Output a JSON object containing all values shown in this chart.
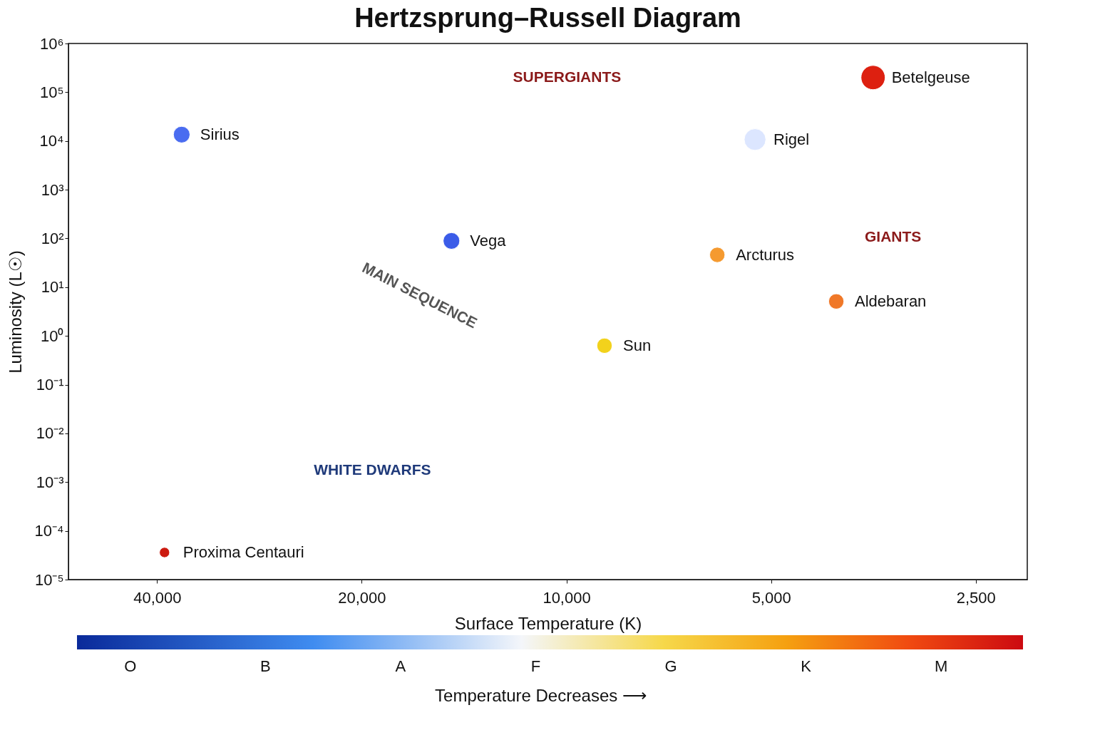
{
  "chart_data": {
    "type": "bubble",
    "title": "Hertzsprung–Russell Diagram",
    "xlabel": "Surface Temperature (K)",
    "ylabel": "Luminosity (L☉)",
    "log": "xy",
    "xlim": [
      54000,
      2100
    ],
    "ylim": [
      1e-05,
      1000000
    ],
    "xticks": [
      {
        "value": 40000,
        "label": "40,000"
      },
      {
        "value": 20000,
        "label": "20,000"
      },
      {
        "value": 10000,
        "label": "10,000"
      },
      {
        "value": 5000,
        "label": "5,000"
      },
      {
        "value": 2500,
        "label": "2,500"
      }
    ],
    "yticks": [
      {
        "value": 1e-05,
        "label": "10⁻⁵"
      },
      {
        "value": 0.0001,
        "label": "10⁻⁴"
      },
      {
        "value": 0.001,
        "label": "10⁻³"
      },
      {
        "value": 0.01,
        "label": "10⁻²"
      },
      {
        "value": 0.1,
        "label": "10⁻¹"
      },
      {
        "value": 1,
        "label": "10⁰"
      },
      {
        "value": 10,
        "label": "10¹"
      },
      {
        "value": 100,
        "label": "10²"
      },
      {
        "value": 1000,
        "label": "10³"
      },
      {
        "value": 10000,
        "label": "10⁴"
      },
      {
        "value": 100000,
        "label": "10⁵"
      },
      {
        "value": 1000000,
        "label": "10⁶"
      }
    ],
    "grid": false,
    "series": [
      {
        "name": "Sirius",
        "color": "#4a6cf0",
        "x": [
          36800
        ],
        "values": [
          13500
        ],
        "sizes": [
          0.47
        ]
      },
      {
        "name": "Vega",
        "color": "#3b5ce8",
        "x": [
          14760
        ],
        "values": [
          89
        ],
        "sizes": [
          0.47
        ]
      },
      {
        "name": "Sun",
        "color": "#f2d21c",
        "x": [
          8790
        ],
        "values": [
          0.63
        ],
        "sizes": [
          0.4
        ]
      },
      {
        "name": "Arcturus",
        "color": "#f59a30",
        "x": [
          6000
        ],
        "values": [
          46
        ],
        "sizes": [
          0.4
        ]
      },
      {
        "name": "Aldebaran",
        "color": "#f07828",
        "x": [
          4010
        ],
        "values": [
          5.1
        ],
        "sizes": [
          0.4
        ]
      },
      {
        "name": "Rigel",
        "color": "#dce6ff",
        "x": [
          5280
        ],
        "values": [
          10700
        ],
        "sizes": [
          0.8
        ]
      },
      {
        "name": "Betelgeuse",
        "color": "#dd2010",
        "x": [
          3540
        ],
        "values": [
          200000
        ],
        "sizes": [
          1
        ]
      },
      {
        "name": "Proxima Centauri",
        "color": "#cc1a10",
        "x": [
          39000
        ],
        "values": [
          3.6e-05
        ],
        "sizes": [
          0.18
        ]
      }
    ],
    "annotations": [
      "SUPERGIANTS",
      "GIANTS",
      "MAIN SEQUENCE",
      "WHITE DWARFS",
      "O",
      "B",
      "A",
      "F",
      "G",
      "K",
      "M",
      "Temperature Decreases ⟶"
    ]
  }
}
